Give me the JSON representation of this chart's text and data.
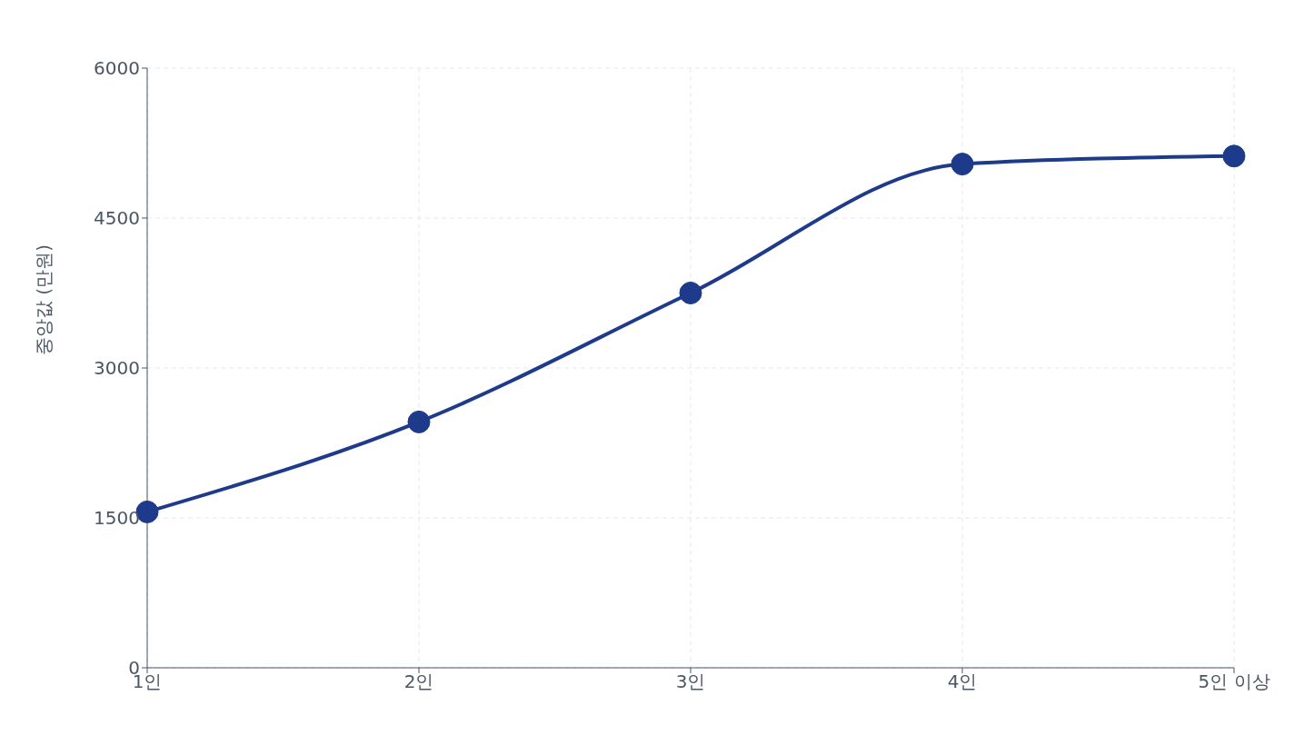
{
  "chart_data": {
    "type": "line",
    "ylabel": "중앙값 (만원)",
    "categories": [
      "1인",
      "2인",
      "3인",
      "4인",
      "5인 이상"
    ],
    "series": [
      {
        "color": "#1e3a8a",
        "values": [
          1560,
          2460,
          3750,
          5040,
          5120
        ]
      }
    ],
    "ylim": [
      0,
      6000
    ],
    "yticks": [
      0,
      1500,
      3000,
      4500,
      6000
    ],
    "grid": true,
    "marker": "circle",
    "line_style": "solid"
  }
}
